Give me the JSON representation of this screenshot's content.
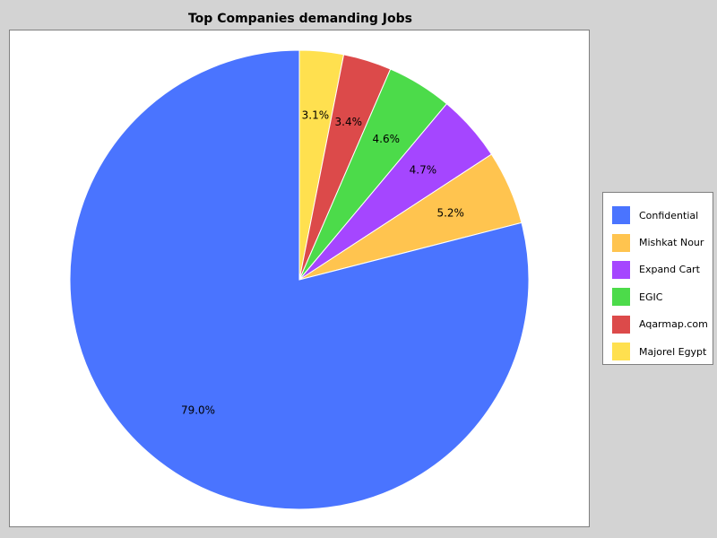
{
  "chart_data": {
    "type": "pie",
    "title": "Top Companies demanding Jobs",
    "legend_position": "right",
    "slices": [
      {
        "name": "Confidential",
        "value": 79.0,
        "label": "79.0%",
        "color": "#4a74ff"
      },
      {
        "name": "Mishkat Nour",
        "value": 5.2,
        "label": "5.2%",
        "color": "#ffc44f"
      },
      {
        "name": "Expand Cart",
        "value": 4.7,
        "label": "4.7%",
        "color": "#a546ff"
      },
      {
        "name": "EGIC",
        "value": 4.6,
        "label": "4.6%",
        "color": "#4cdb4a"
      },
      {
        "name": "Aqarmap.com",
        "value": 3.4,
        "label": "3.4%",
        "color": "#dc4a4a"
      },
      {
        "name": "Majorel Egypt",
        "value": 3.1,
        "label": "3.1%",
        "color": "#ffe04f"
      }
    ]
  }
}
